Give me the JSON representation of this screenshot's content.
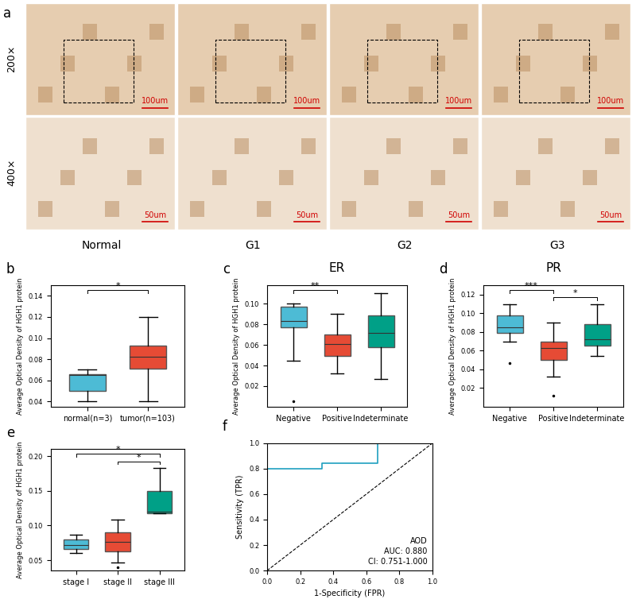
{
  "panel_a": {
    "panel": "a",
    "row_labels": [
      "200×",
      "400×"
    ],
    "column_labels": [
      "Normal",
      "G1",
      "G2",
      "G3"
    ],
    "scale_bars": [
      "100um",
      "50um"
    ]
  },
  "chart_data": [
    {
      "panel": "b",
      "type": "box",
      "ylabel": "Average Optical Density of HGH1 protein",
      "categories": [
        "normal(n=3)",
        "tumor(n=103)"
      ],
      "colors": [
        "#4DBBD5",
        "#E64B35"
      ],
      "boxes": [
        {
          "min": 0.04,
          "q1": 0.05,
          "median": 0.065,
          "q3": 0.066,
          "max": 0.07,
          "outliers": []
        },
        {
          "min": 0.04,
          "q1": 0.071,
          "median": 0.082,
          "q3": 0.093,
          "max": 0.12,
          "outliers": []
        }
      ],
      "ylim": [
        0.035,
        0.15
      ],
      "yticks": [
        0.04,
        0.06,
        0.08,
        {
          "value": 0.1,
          "label": "0.10"
        },
        0.12,
        0.14
      ],
      "comparisons": [
        {
          "pair": [
            0,
            1
          ],
          "label": "*"
        }
      ]
    },
    {
      "panel": "c",
      "type": "box",
      "title": "ER",
      "ylabel": "Average Optical Density of HGH1 protein",
      "categories": [
        "Negative",
        "Positive",
        "Indeterminate"
      ],
      "colors": [
        "#4DBBD5",
        "#E64B35",
        "#00A087"
      ],
      "boxes": [
        {
          "min": 0.045,
          "q1": 0.077,
          "median": 0.083,
          "q3": 0.097,
          "max": 0.1,
          "outliers": [
            0.005
          ]
        },
        {
          "min": 0.032,
          "q1": 0.049,
          "median": 0.061,
          "q3": 0.07,
          "max": 0.09,
          "outliers": []
        },
        {
          "min": 0.027,
          "q1": 0.058,
          "median": 0.072,
          "q3": 0.089,
          "max": 0.11,
          "outliers": []
        }
      ],
      "ylim": [
        0.0,
        0.118
      ],
      "yticks": [
        0.02,
        0.04,
        0.06,
        0.08,
        {
          "value": 0.1,
          "label": "0.10"
        }
      ],
      "comparisons": [
        {
          "pair": [
            0,
            1
          ],
          "label": "**"
        }
      ]
    },
    {
      "panel": "d",
      "type": "box",
      "title": "PR",
      "ylabel": "Average Optical Density of HGH1 protein",
      "categories": [
        "Negative",
        "Positive",
        "Indeterminate"
      ],
      "colors": [
        "#4DBBD5",
        "#E64B35",
        "#00A087"
      ],
      "boxes": [
        {
          "min": 0.07,
          "q1": 0.079,
          "median": 0.085,
          "q3": 0.098,
          "max": 0.11,
          "outliers": [
            0.047
          ]
        },
        {
          "min": 0.032,
          "q1": 0.05,
          "median": 0.063,
          "q3": 0.07,
          "max": 0.09,
          "outliers": [
            0.012
          ]
        },
        {
          "min": 0.054,
          "q1": 0.065,
          "median": 0.072,
          "q3": 0.088,
          "max": 0.11,
          "outliers": []
        }
      ],
      "ylim": [
        0.0,
        0.13
      ],
      "yticks": [
        0.02,
        0.04,
        0.06,
        0.08,
        {
          "value": 0.1,
          "label": "0.10"
        },
        0.12
      ],
      "comparisons": [
        {
          "pair": [
            0,
            1
          ],
          "label": "***"
        },
        {
          "pair": [
            1,
            2
          ],
          "label": "*"
        }
      ]
    },
    {
      "panel": "e",
      "type": "box",
      "ylabel": "Average Optical Density of HGH1 protein",
      "categories": [
        "stage I",
        "stage II",
        "stage III"
      ],
      "colors": [
        "#4DBBD5",
        "#E64B35",
        "#00A087"
      ],
      "boxes": [
        {
          "min": 0.06,
          "q1": 0.066,
          "median": 0.072,
          "q3": 0.08,
          "max": 0.087,
          "outliers": []
        },
        {
          "min": 0.047,
          "q1": 0.063,
          "median": 0.076,
          "q3": 0.09,
          "max": 0.108,
          "outliers": [
            0.04
          ]
        },
        {
          "min": 0.118,
          "q1": 0.118,
          "median": 0.12,
          "q3": 0.15,
          "max": 0.183,
          "outliers": []
        }
      ],
      "ylim": [
        0.035,
        0.21
      ],
      "yticks": [
        0.05,
        {
          "value": 0.1,
          "label": "0.10"
        },
        0.15,
        {
          "value": 0.2,
          "label": "0.20"
        }
      ],
      "comparisons": [
        {
          "pair": [
            0,
            2
          ],
          "label": "*"
        },
        {
          "pair": [
            1,
            2
          ],
          "label": "*"
        }
      ]
    },
    {
      "panel": "f",
      "type": "line",
      "xlabel": "1-Specificity (FPR)",
      "ylabel": "Sensitivity (TPR)",
      "x": [
        0.0,
        0.0,
        0.333,
        0.333,
        0.667,
        0.667,
        1.0
      ],
      "values": [
        0.0,
        0.8,
        0.8,
        0.84,
        0.84,
        1.0,
        1.0
      ],
      "color": "#1F9FC0",
      "xlim": [
        0.0,
        1.0
      ],
      "ylim": [
        0.0,
        1.0
      ],
      "xticks": [
        0.0,
        0.2,
        0.4,
        0.6,
        0.8,
        1.0
      ],
      "yticks": [
        0.0,
        0.2,
        0.4,
        0.6,
        0.8,
        1.0
      ],
      "annotations": [
        "AOD",
        "AUC: 0.880",
        "CI: 0.751-1.000"
      ]
    }
  ]
}
